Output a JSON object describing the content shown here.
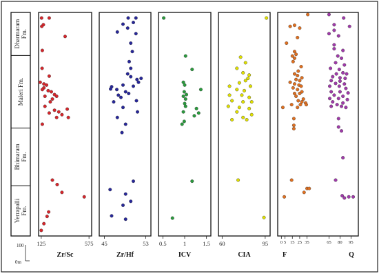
{
  "figure": {
    "scale": {
      "top_label": "100",
      "bottom_label": "0m"
    }
  },
  "formations": [
    {
      "lines": [
        "Dharmaram",
        "Fm."
      ]
    },
    {
      "lines": [
        "Maleri Fm."
      ]
    },
    {
      "lines": [
        "Bhimaram",
        "Fm."
      ]
    },
    {
      "lines": [
        "Yerrapalli",
        "Fm."
      ]
    }
  ],
  "formation_bounds_m": [
    400,
    323,
    193,
    90,
    0
  ],
  "chart_data": [
    {
      "type": "scatter",
      "xlabel": "Zr/Sc",
      "xlim": [
        100,
        600
      ],
      "ticks": [
        {
          "v": 125,
          "label": "125"
        },
        {
          "v": 575,
          "label": "575"
        }
      ],
      "series": [
        {
          "color": "#d6262b",
          "points": [
            [
              128,
              390
            ],
            [
              145,
              378
            ],
            [
              200,
              390
            ],
            [
              130,
              375
            ],
            [
              350,
              357
            ],
            [
              135,
              332
            ],
            [
              133,
              300
            ],
            [
              200,
              286
            ],
            [
              115,
              275
            ],
            [
              150,
              272
            ],
            [
              175,
              270
            ],
            [
              150,
              265
            ],
            [
              135,
              262
            ],
            [
              190,
              260
            ],
            [
              220,
              258
            ],
            [
              250,
              253
            ],
            [
              160,
              250
            ],
            [
              270,
              250
            ],
            [
              230,
              245
            ],
            [
              210,
              240
            ],
            [
              160,
              232
            ],
            [
              250,
              225
            ],
            [
              370,
              227
            ],
            [
              290,
              222
            ],
            [
              320,
              217
            ],
            [
              270,
              212
            ],
            [
              380,
              212
            ],
            [
              135,
              200
            ],
            [
              200,
              220
            ],
            [
              230,
              100
            ],
            [
              275,
              92
            ],
            [
              320,
              78
            ],
            [
              530,
              70
            ],
            [
              195,
              43
            ],
            [
              180,
              35
            ],
            [
              150,
              22
            ],
            [
              125,
              10
            ]
          ]
        }
      ]
    },
    {
      "type": "scatter",
      "xlabel": "Zr/Hf",
      "xlim": [
        44,
        54
      ],
      "ticks": [
        {
          "v": 45,
          "label": "45"
        },
        {
          "v": 53,
          "label": "53"
        }
      ],
      "series": [
        {
          "color": "#27279a",
          "points": [
            [
              49.6,
              390
            ],
            [
              51.1,
              390
            ],
            [
              50.6,
              382
            ],
            [
              48.6,
              379
            ],
            [
              49.5,
              372
            ],
            [
              47.5,
              365
            ],
            [
              51.1,
              362
            ],
            [
              50.1,
              345
            ],
            [
              50.4,
              330
            ],
            [
              49.8,
              312
            ],
            [
              50.1,
              300
            ],
            [
              49.5,
              290
            ],
            [
              50.1,
              285
            ],
            [
              52.1,
              282
            ],
            [
              51.3,
              280
            ],
            [
              51.6,
              275
            ],
            [
              46.4,
              267
            ],
            [
              48.6,
              270
            ],
            [
              50.6,
              268
            ],
            [
              46.2,
              263
            ],
            [
              47.4,
              262
            ],
            [
              49.1,
              258
            ],
            [
              49.7,
              255
            ],
            [
              47.7,
              252
            ],
            [
              48.2,
              248
            ],
            [
              51.2,
              242
            ],
            [
              46.8,
              240
            ],
            [
              48.6,
              230
            ],
            [
              51.4,
              222
            ],
            [
              47.5,
              212
            ],
            [
              49.1,
              200
            ],
            [
              48.4,
              185
            ],
            [
              50.6,
              98
            ],
            [
              46.1,
              83
            ],
            [
              49.1,
              75
            ],
            [
              50.1,
              62
            ],
            [
              48.6,
              55
            ],
            [
              46.4,
              36
            ],
            [
              49.1,
              30
            ]
          ]
        }
      ]
    },
    {
      "type": "scatter",
      "xlabel": "ICV",
      "xlim": [
        0.4,
        1.6
      ],
      "ticks": [
        {
          "v": 0.5,
          "label": "0.5"
        },
        {
          "v": 1,
          "label": "1"
        },
        {
          "v": 1.5,
          "label": "1.5"
        }
      ],
      "series": [
        {
          "color": "#2a9a3d",
          "points": [
            [
              0.52,
              390
            ],
            [
              1.02,
              322
            ],
            [
              1.17,
              298
            ],
            [
              0.97,
              275
            ],
            [
              1.0,
              270
            ],
            [
              1.37,
              262
            ],
            [
              0.99,
              258
            ],
            [
              1.04,
              253
            ],
            [
              0.97,
              250
            ],
            [
              1.02,
              245
            ],
            [
              1.0,
              237
            ],
            [
              1.02,
              232
            ],
            [
              1.27,
              228
            ],
            [
              1.32,
              220
            ],
            [
              0.97,
              222
            ],
            [
              1.22,
              215
            ],
            [
              0.99,
              205
            ],
            [
              0.94,
              200
            ],
            [
              1.17,
              98
            ],
            [
              0.72,
              32
            ]
          ]
        }
      ]
    },
    {
      "type": "scatter",
      "xlabel": "CIA",
      "xlim": [
        57,
        99
      ],
      "ticks": [
        {
          "v": 60,
          "label": "60"
        },
        {
          "v": 95,
          "label": "95"
        }
      ],
      "series": [
        {
          "color": "#e0e000",
          "points": [
            [
              96,
              390
            ],
            [
              75,
              320
            ],
            [
              79,
              310
            ],
            [
              72,
              300
            ],
            [
              77,
              292
            ],
            [
              82,
              288
            ],
            [
              81,
              282
            ],
            [
              79,
              278
            ],
            [
              74,
              274
            ],
            [
              66,
              268
            ],
            [
              83,
              268
            ],
            [
              72,
              262
            ],
            [
              78,
              260
            ],
            [
              66,
              252
            ],
            [
              76,
              252
            ],
            [
              82,
              248
            ],
            [
              68,
              242
            ],
            [
              77,
              240
            ],
            [
              84,
              240
            ],
            [
              65,
              232
            ],
            [
              74,
              230
            ],
            [
              82,
              228
            ],
            [
              72,
              222
            ],
            [
              84,
              217
            ],
            [
              77,
              212
            ],
            [
              68,
              208
            ],
            [
              80,
              208
            ],
            [
              73,
              100
            ],
            [
              94,
              33
            ]
          ]
        }
      ]
    },
    {
      "type": "scatter",
      "xlabels": [
        "F",
        "Q"
      ],
      "xlim": [
        -5,
        105
      ],
      "ticks": [
        {
          "v": 0,
          "label": "0"
        },
        {
          "v": 5,
          "label": "5"
        },
        {
          "v": 15,
          "label": "15"
        },
        {
          "v": 25,
          "label": "25"
        },
        {
          "v": 35,
          "label": "35"
        },
        {
          "v": 65,
          "label": "65"
        },
        {
          "v": 80,
          "label": "80"
        },
        {
          "v": 95,
          "label": "95"
        }
      ],
      "series": [
        {
          "name": "F",
          "color": "#e07020",
          "points": [
            [
              36,
              400
            ],
            [
              12,
              375
            ],
            [
              18,
              377
            ],
            [
              25,
              372
            ],
            [
              22,
              355
            ],
            [
              7,
              345
            ],
            [
              18,
              330
            ],
            [
              20,
              325
            ],
            [
              15,
              322
            ],
            [
              18,
              318
            ],
            [
              16,
              312
            ],
            [
              27,
              303
            ],
            [
              23,
              295
            ],
            [
              18,
              290
            ],
            [
              22,
              287
            ],
            [
              28,
              283
            ],
            [
              20,
              280
            ],
            [
              25,
              278
            ],
            [
              12,
              275
            ],
            [
              18,
              272
            ],
            [
              24,
              270
            ],
            [
              27,
              268
            ],
            [
              16,
              265
            ],
            [
              22,
              262
            ],
            [
              28,
              258
            ],
            [
              18,
              255
            ],
            [
              25,
              255
            ],
            [
              20,
              250
            ],
            [
              30,
              245
            ],
            [
              23,
              242
            ],
            [
              28,
              240
            ],
            [
              33,
              238
            ],
            [
              14,
              235
            ],
            [
              26,
              235
            ],
            [
              34,
              235
            ],
            [
              22,
              230
            ],
            [
              2,
              230
            ],
            [
              17,
              210
            ],
            [
              17,
              198
            ],
            [
              17,
              192
            ],
            [
              14,
              100
            ],
            [
              35,
              85
            ],
            [
              38,
              85
            ],
            [
              31,
              78
            ],
            [
              4,
              70
            ]
          ]
        },
        {
          "name": "Q",
          "color": "#a03aaa",
          "points": [
            [
              65,
              400
            ],
            [
              85,
              390
            ],
            [
              72,
              378
            ],
            [
              93,
              375
            ],
            [
              65,
              362
            ],
            [
              72,
              368
            ],
            [
              78,
              358
            ],
            [
              72,
              342
            ],
            [
              72,
              335
            ],
            [
              84,
              332
            ],
            [
              77,
              322
            ],
            [
              82,
              318
            ],
            [
              74,
              310
            ],
            [
              86,
              306
            ],
            [
              67,
              300
            ],
            [
              79,
              298
            ],
            [
              84,
              292
            ],
            [
              75,
              290
            ],
            [
              89,
              290
            ],
            [
              70,
              285
            ],
            [
              80,
              283
            ],
            [
              87,
              282
            ],
            [
              68,
              278
            ],
            [
              80,
              277
            ],
            [
              74,
              273
            ],
            [
              86,
              272
            ],
            [
              66,
              268
            ],
            [
              79,
              268
            ],
            [
              88,
              264
            ],
            [
              68,
              258
            ],
            [
              80,
              258
            ],
            [
              91,
              256
            ],
            [
              72,
              252
            ],
            [
              84,
              250
            ],
            [
              66,
              246
            ],
            [
              78,
              246
            ],
            [
              90,
              244
            ],
            [
              70,
              240
            ],
            [
              84,
              238
            ],
            [
              76,
              235
            ],
            [
              68,
              232
            ],
            [
              82,
              232
            ],
            [
              88,
              230
            ],
            [
              78,
              210
            ],
            [
              78,
              195
            ],
            [
              82,
              188
            ],
            [
              84,
              140
            ],
            [
              74,
              100
            ],
            [
              83,
              72
            ],
            [
              86,
              68
            ],
            [
              98,
              70
            ],
            [
              92,
              70
            ]
          ]
        }
      ]
    }
  ]
}
